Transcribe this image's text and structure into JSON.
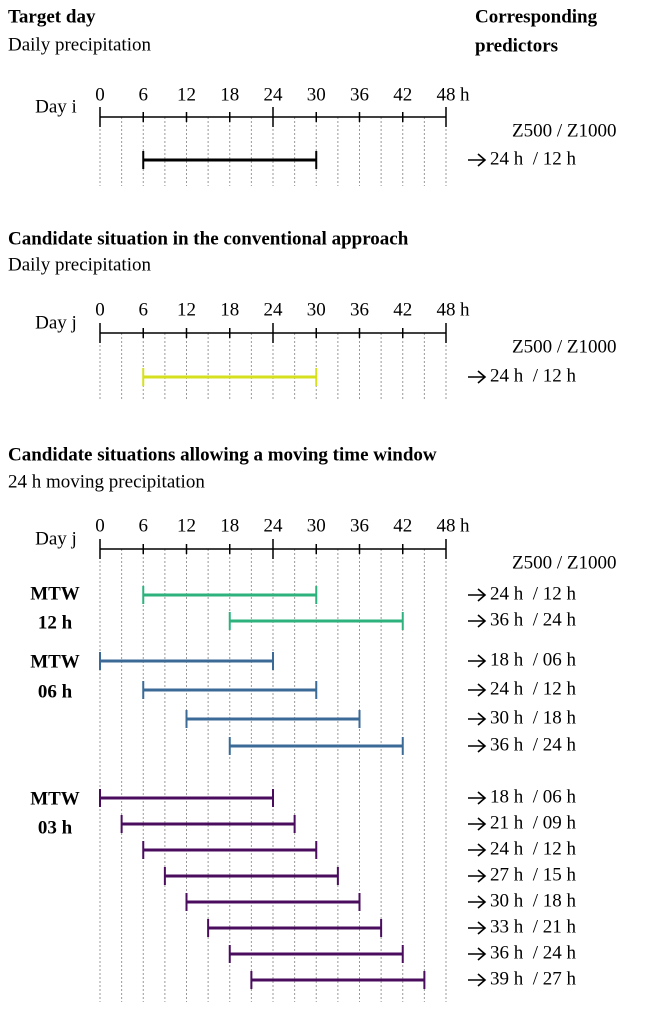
{
  "header": {
    "right_title_line1": "Corresponding",
    "right_title_line2": "predictors"
  },
  "panels": [
    {
      "title": "Target day",
      "subtitle": "Daily precipitation",
      "day_label": "Day i",
      "ticks": [
        0,
        6,
        12,
        18,
        24,
        30,
        36,
        42,
        48
      ],
      "unit": "h",
      "predictor_header": "Z500 / Z1000",
      "groups": [
        {
          "color": "#000000",
          "bars": [
            {
              "start": 6,
              "end": 30,
              "predictors": "24 h  / 12 h"
            }
          ]
        }
      ]
    },
    {
      "title": "Candidate situation in the conventional approach",
      "subtitle": "Daily precipitation",
      "day_label": "Day j",
      "ticks": [
        0,
        6,
        12,
        18,
        24,
        30,
        36,
        42,
        48
      ],
      "unit": "h",
      "predictor_header": "Z500 / Z1000",
      "groups": [
        {
          "color": "#d6e01e",
          "bars": [
            {
              "start": 6,
              "end": 30,
              "predictors": "24 h  / 12 h"
            }
          ]
        }
      ]
    },
    {
      "title": "Candidate situations allowing a moving time window",
      "subtitle": "24 h moving precipitation",
      "day_label": "Day j",
      "ticks": [
        0,
        6,
        12,
        18,
        24,
        30,
        36,
        42,
        48
      ],
      "unit": "h",
      "predictor_header": "Z500 / Z1000",
      "groups": [
        {
          "labels": [
            "MTW",
            "12 h"
          ],
          "color": "#2db27d",
          "bars": [
            {
              "start": 6,
              "end": 30,
              "predictors": "24 h  / 12 h"
            },
            {
              "start": 18,
              "end": 42,
              "predictors": "36 h  / 24 h"
            }
          ]
        },
        {
          "labels": [
            "MTW",
            "06 h"
          ],
          "color": "#3b6a96",
          "bars": [
            {
              "start": 0,
              "end": 24,
              "predictors": "18 h  / 06 h"
            },
            {
              "start": 6,
              "end": 30,
              "predictors": "24 h  / 12 h"
            },
            {
              "start": 12,
              "end": 36,
              "predictors": "30 h  / 18 h"
            },
            {
              "start": 18,
              "end": 42,
              "predictors": "36 h  / 24 h"
            }
          ]
        },
        {
          "labels": [
            "MTW",
            "03 h"
          ],
          "color": "#4a0d5e",
          "bars": [
            {
              "start": 0,
              "end": 24,
              "predictors": "18 h  / 06 h"
            },
            {
              "start": 3,
              "end": 27,
              "predictors": "21 h  / 09 h"
            },
            {
              "start": 6,
              "end": 30,
              "predictors": "24 h  / 12 h"
            },
            {
              "start": 9,
              "end": 33,
              "predictors": "27 h  / 15 h"
            },
            {
              "start": 12,
              "end": 36,
              "predictors": "30 h  / 18 h"
            },
            {
              "start": 15,
              "end": 39,
              "predictors": "33 h  / 21 h"
            },
            {
              "start": 18,
              "end": 42,
              "predictors": "36 h  / 24 h"
            },
            {
              "start": 21,
              "end": 45,
              "predictors": "39 h  / 27 h"
            }
          ]
        }
      ]
    }
  ]
}
